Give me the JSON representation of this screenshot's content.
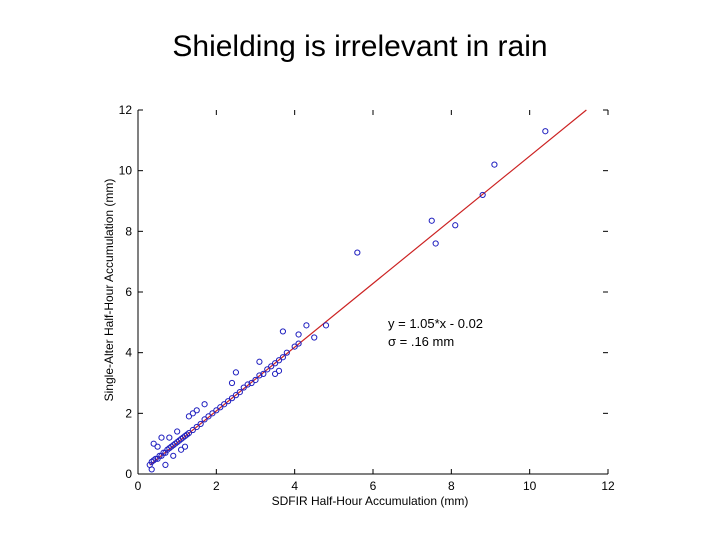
{
  "slide": {
    "title": "Shielding is irrelevant in rain"
  },
  "colors": {
    "points": "#1f1fbf",
    "fit_line": "#cc2222",
    "axes": "#000000"
  },
  "chart_data": {
    "type": "scatter",
    "title": "",
    "xlabel": "SDFIR Half-Hour Accumulation (mm)",
    "ylabel": "Single-Alter Half-Hour Accumulation (mm)",
    "xlim": [
      0,
      12
    ],
    "ylim": [
      0,
      12
    ],
    "xticks": [
      0,
      2,
      4,
      6,
      8,
      10,
      12
    ],
    "yticks": [
      0,
      2,
      4,
      6,
      8,
      10,
      12
    ],
    "grid": false,
    "annotation": {
      "line1": "y = 1.05*x - 0.02",
      "line2": "σ = .16 mm"
    },
    "fit": {
      "slope": 1.05,
      "intercept": -0.02
    },
    "series": [
      {
        "marker": "circle",
        "points": [
          [
            0.3,
            0.3
          ],
          [
            0.35,
            0.4
          ],
          [
            0.4,
            0.45
          ],
          [
            0.45,
            0.5
          ],
          [
            0.5,
            0.5
          ],
          [
            0.55,
            0.6
          ],
          [
            0.6,
            0.6
          ],
          [
            0.65,
            0.7
          ],
          [
            0.7,
            0.7
          ],
          [
            0.75,
            0.8
          ],
          [
            0.8,
            0.85
          ],
          [
            0.85,
            0.9
          ],
          [
            0.9,
            0.95
          ],
          [
            0.95,
            1.0
          ],
          [
            1.0,
            1.05
          ],
          [
            1.05,
            1.1
          ],
          [
            1.1,
            1.15
          ],
          [
            1.15,
            1.2
          ],
          [
            1.2,
            1.25
          ],
          [
            1.25,
            1.3
          ],
          [
            1.3,
            1.35
          ],
          [
            1.4,
            1.45
          ],
          [
            1.5,
            1.55
          ],
          [
            1.6,
            1.65
          ],
          [
            1.7,
            1.8
          ],
          [
            1.8,
            1.9
          ],
          [
            1.9,
            2.0
          ],
          [
            2.0,
            2.1
          ],
          [
            2.1,
            2.2
          ],
          [
            2.2,
            2.3
          ],
          [
            2.3,
            2.4
          ],
          [
            2.4,
            2.5
          ],
          [
            2.5,
            2.6
          ],
          [
            2.6,
            2.7
          ],
          [
            2.7,
            2.85
          ],
          [
            2.8,
            2.95
          ],
          [
            2.9,
            3.0
          ],
          [
            3.0,
            3.1
          ],
          [
            3.1,
            3.25
          ],
          [
            3.2,
            3.3
          ],
          [
            3.3,
            3.45
          ],
          [
            3.4,
            3.55
          ],
          [
            3.5,
            3.65
          ],
          [
            3.6,
            3.75
          ],
          [
            3.7,
            3.85
          ],
          [
            3.8,
            4.0
          ],
          [
            4.0,
            4.2
          ],
          [
            4.1,
            4.3
          ],
          [
            0.4,
            1.0
          ],
          [
            0.5,
            0.9
          ],
          [
            0.6,
            1.2
          ],
          [
            0.8,
            1.2
          ],
          [
            1.0,
            1.4
          ],
          [
            1.3,
            1.9
          ],
          [
            1.4,
            2.0
          ],
          [
            1.5,
            2.1
          ],
          [
            1.7,
            2.3
          ],
          [
            2.4,
            3.0
          ],
          [
            2.5,
            3.35
          ],
          [
            3.1,
            3.7
          ],
          [
            3.6,
            3.4
          ],
          [
            3.5,
            3.3
          ],
          [
            3.7,
            4.7
          ],
          [
            4.3,
            4.9
          ],
          [
            4.1,
            4.6
          ],
          [
            4.5,
            4.5
          ],
          [
            4.8,
            4.9
          ],
          [
            0.9,
            0.6
          ],
          [
            1.1,
            0.8
          ],
          [
            0.7,
            0.3
          ],
          [
            0.35,
            0.15
          ],
          [
            1.2,
            0.9
          ],
          [
            5.6,
            7.3
          ],
          [
            7.5,
            8.35
          ],
          [
            7.6,
            7.6
          ],
          [
            8.1,
            8.2
          ],
          [
            8.8,
            9.2
          ],
          [
            9.1,
            10.2
          ],
          [
            10.4,
            11.3
          ]
        ]
      }
    ]
  }
}
